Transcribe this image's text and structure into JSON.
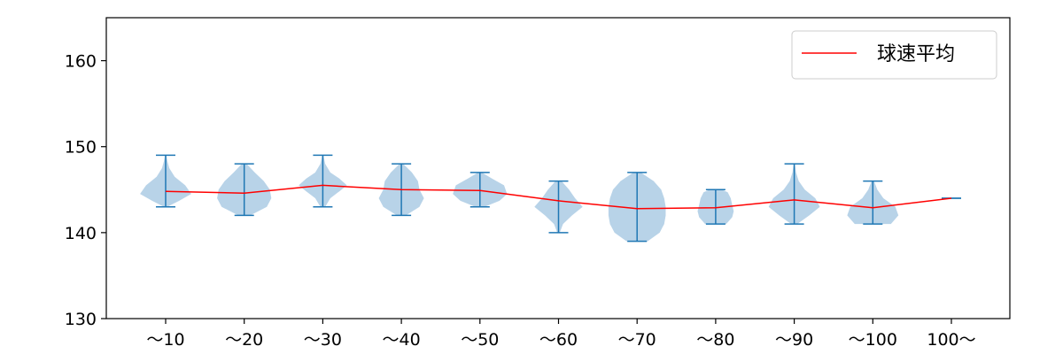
{
  "chart_data": {
    "type": "violin",
    "title": "",
    "xlabel": "",
    "ylabel": "",
    "categories": [
      "〜10",
      "〜20",
      "〜30",
      "〜40",
      "〜50",
      "〜60",
      "〜70",
      "〜80",
      "〜90",
      "〜100",
      "100〜"
    ],
    "ylim": [
      130,
      165
    ],
    "yticks": [
      130,
      140,
      150,
      160
    ],
    "grid": false,
    "legend_position": "top-right",
    "colors": {
      "violin_fill": "#b8d3e8",
      "whisker": "#1f77b4",
      "mean_line": "#ff0000",
      "axis": "#000000"
    },
    "violins": [
      {
        "category": "〜10",
        "min": 143,
        "max": 149,
        "mean": 144.8,
        "density": [
          [
            143,
            0.05
          ],
          [
            143.7,
            0.45
          ],
          [
            144.5,
            0.85
          ],
          [
            145.5,
            0.65
          ],
          [
            146.5,
            0.3
          ],
          [
            147.5,
            0.12
          ],
          [
            148.3,
            0.06
          ],
          [
            149,
            0.02
          ]
        ]
      },
      {
        "category": "〜20",
        "min": 142,
        "max": 148,
        "mean": 144.6,
        "density": [
          [
            142,
            0.2
          ],
          [
            143,
            0.75
          ],
          [
            144,
            0.9
          ],
          [
            145,
            0.85
          ],
          [
            146,
            0.65
          ],
          [
            147,
            0.35
          ],
          [
            148,
            0.08
          ]
        ]
      },
      {
        "category": "〜30",
        "min": 143,
        "max": 149,
        "mean": 145.5,
        "density": [
          [
            143,
            0.08
          ],
          [
            144,
            0.25
          ],
          [
            144.8,
            0.55
          ],
          [
            145.5,
            0.8
          ],
          [
            146.3,
            0.55
          ],
          [
            147,
            0.25
          ],
          [
            148,
            0.08
          ],
          [
            149,
            0.02
          ]
        ]
      },
      {
        "category": "〜40",
        "min": 142,
        "max": 148,
        "mean": 145.0,
        "density": [
          [
            142,
            0.15
          ],
          [
            143,
            0.6
          ],
          [
            144,
            0.75
          ],
          [
            145,
            0.6
          ],
          [
            146,
            0.55
          ],
          [
            147,
            0.35
          ],
          [
            148,
            0.06
          ]
        ]
      },
      {
        "category": "〜50",
        "min": 143,
        "max": 147,
        "mean": 144.9,
        "density": [
          [
            143,
            0.15
          ],
          [
            143.7,
            0.65
          ],
          [
            144.5,
            0.9
          ],
          [
            145.5,
            0.8
          ],
          [
            146.3,
            0.4
          ],
          [
            147,
            0.06
          ]
        ]
      },
      {
        "category": "〜60",
        "min": 140,
        "max": 146,
        "mean": 143.7,
        "density": [
          [
            140,
            0.04
          ],
          [
            141,
            0.15
          ],
          [
            142,
            0.45
          ],
          [
            143,
            0.8
          ],
          [
            144,
            0.55
          ],
          [
            145,
            0.35
          ],
          [
            146,
            0.1
          ]
        ]
      },
      {
        "category": "〜70",
        "min": 139,
        "max": 147,
        "mean": 142.8,
        "density": [
          [
            139,
            0.35
          ],
          [
            140,
            0.75
          ],
          [
            141,
            0.9
          ],
          [
            142,
            0.95
          ],
          [
            143,
            0.95
          ],
          [
            144,
            0.9
          ],
          [
            145,
            0.8
          ],
          [
            146,
            0.55
          ],
          [
            147,
            0.12
          ]
        ]
      },
      {
        "category": "〜80",
        "min": 141,
        "max": 145,
        "mean": 142.9,
        "density": [
          [
            141,
            0.35
          ],
          [
            141.8,
            0.55
          ],
          [
            142.5,
            0.6
          ],
          [
            143.2,
            0.55
          ],
          [
            144,
            0.5
          ],
          [
            144.7,
            0.4
          ],
          [
            145,
            0.2
          ]
        ]
      },
      {
        "category": "〜90",
        "min": 141,
        "max": 148,
        "mean": 143.8,
        "density": [
          [
            141,
            0.1
          ],
          [
            142,
            0.5
          ],
          [
            143,
            0.85
          ],
          [
            144,
            0.7
          ],
          [
            145,
            0.35
          ],
          [
            146,
            0.15
          ],
          [
            147,
            0.06
          ],
          [
            148,
            0.02
          ]
        ]
      },
      {
        "category": "〜100",
        "min": 141,
        "max": 146,
        "mean": 142.9,
        "density": [
          [
            141,
            0.6
          ],
          [
            142,
            0.85
          ],
          [
            143,
            0.75
          ],
          [
            144,
            0.35
          ],
          [
            145,
            0.15
          ],
          [
            146,
            0.04
          ]
        ]
      },
      {
        "category": "100〜",
        "min": 144,
        "max": 144,
        "mean": 144.0,
        "density": [
          [
            144,
            0.0
          ]
        ]
      }
    ],
    "series": [
      {
        "name": "球速平均",
        "values": [
          144.8,
          144.6,
          145.5,
          145.0,
          144.9,
          143.7,
          142.8,
          142.9,
          143.8,
          142.9,
          144.0
        ]
      }
    ]
  }
}
